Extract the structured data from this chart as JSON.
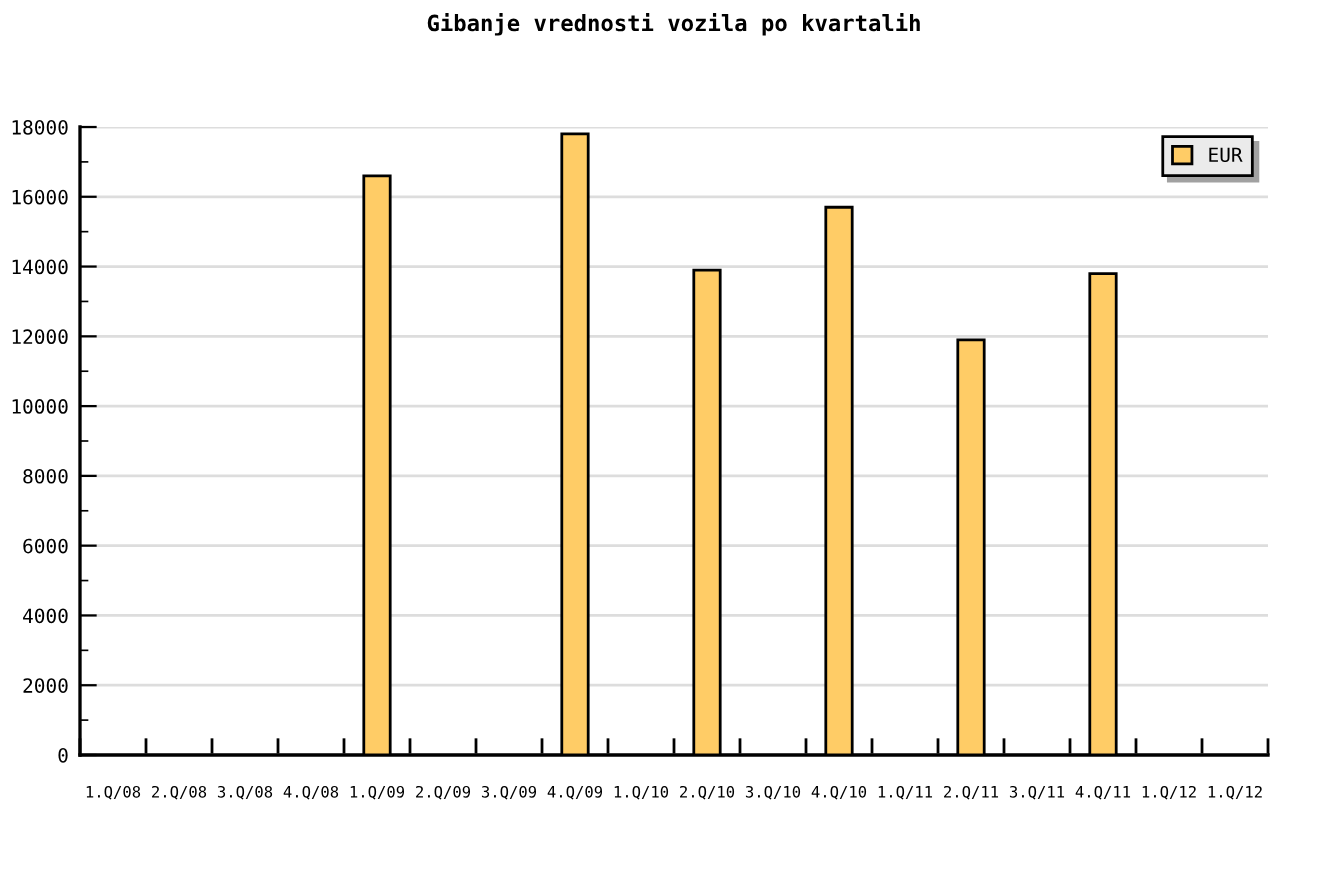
{
  "chart_data": {
    "type": "bar",
    "title": "Gibanje vrednosti vozila po kvartalih",
    "categories": [
      "1.Q/08",
      "2.Q/08",
      "3.Q/08",
      "4.Q/08",
      "1.Q/09",
      "2.Q/09",
      "3.Q/09",
      "4.Q/09",
      "1.Q/10",
      "2.Q/10",
      "3.Q/10",
      "4.Q/10",
      "1.Q/11",
      "2.Q/11",
      "3.Q/11",
      "4.Q/11",
      "1.Q/12",
      "1.Q/12"
    ],
    "series": [
      {
        "name": "EUR",
        "color": "#ffcc66",
        "values": [
          null,
          null,
          null,
          null,
          16600,
          null,
          null,
          17800,
          null,
          13900,
          null,
          15700,
          null,
          11900,
          null,
          13800,
          null,
          null
        ]
      }
    ],
    "ylim": [
      0,
      18000
    ],
    "yticks": [
      0,
      2000,
      4000,
      6000,
      8000,
      10000,
      12000,
      14000,
      16000,
      18000
    ],
    "grid": "y",
    "legend": "top right"
  }
}
